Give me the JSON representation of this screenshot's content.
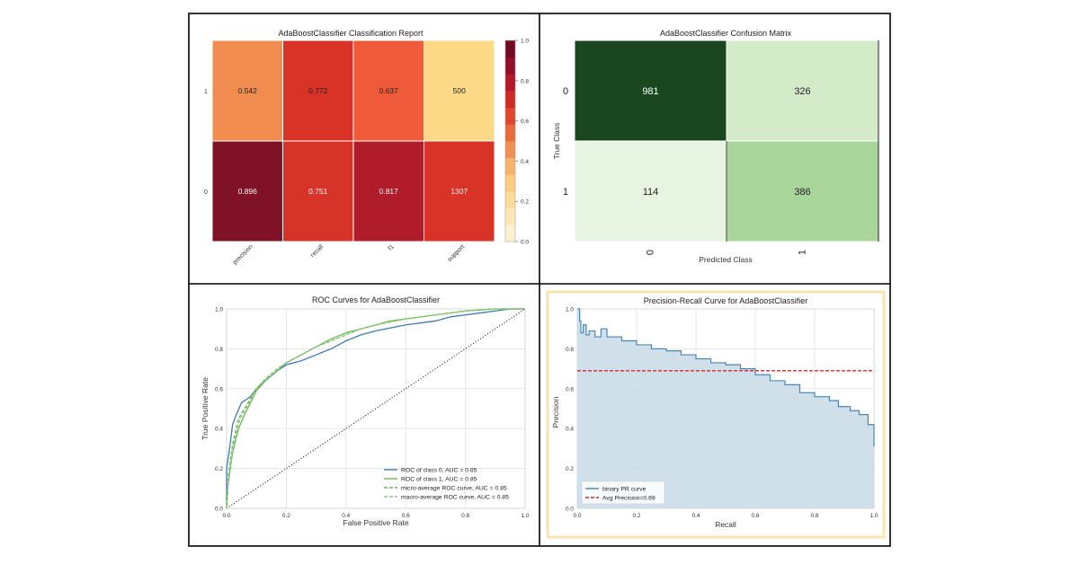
{
  "chart_data": [
    {
      "type": "heatmap",
      "title": "AdaBoostClassifier Classification Report",
      "columns": [
        "precision",
        "recall",
        "f1",
        "support"
      ],
      "rows": [
        "1",
        "0"
      ],
      "values": [
        [
          0.542,
          0.772,
          0.637,
          500
        ],
        [
          0.896,
          0.751,
          0.817,
          1307
        ]
      ],
      "cell_labels": [
        [
          "0.542",
          "0.772",
          "0.637",
          "500"
        ],
        [
          "0.896",
          "0.751",
          "0.817",
          "1307"
        ]
      ],
      "cell_colors": [
        [
          "#f08c50",
          "#d93226",
          "#ee5a3a",
          "#fbd987"
        ],
        [
          "#7f1226",
          "#d63428",
          "#b01c2a",
          "#d93226"
        ]
      ],
      "colorbar": {
        "ticks": [
          "0.0",
          "0.2",
          "0.4",
          "0.6",
          "0.8",
          "1.0"
        ],
        "range": [
          0,
          1
        ],
        "steps": [
          "#fdf2cf",
          "#fde8b5",
          "#fcdc9a",
          "#fbcb80",
          "#f6b26b",
          "#f09055",
          "#ea6a3e",
          "#e2462f",
          "#d02a24",
          "#b5172a",
          "#930f28",
          "#720a24"
        ]
      }
    },
    {
      "type": "heatmap",
      "title": "AdaBoostClassifier Confusion Matrix",
      "xlabel": "Predicted Class",
      "ylabel": "True Class",
      "x_ticks": [
        "0",
        "1"
      ],
      "y_ticks": [
        "0",
        "1"
      ],
      "values": [
        [
          981,
          326
        ],
        [
          114,
          386
        ]
      ],
      "cell_labels": [
        [
          "981",
          "326"
        ],
        [
          "114",
          "386"
        ]
      ],
      "cell_colors": [
        [
          "#1a4620",
          "#d3ebc8"
        ],
        [
          "#e8f4e2",
          "#a8d69a"
        ]
      ],
      "text_colors": [
        [
          "#ffffff",
          "#222222"
        ],
        [
          "#222222",
          "#222222"
        ]
      ]
    },
    {
      "type": "line",
      "title": "ROC Curves for AdaBoostClassifier",
      "xlabel": "False Positive Rate",
      "ylabel": "True Positive Rate",
      "xlim": [
        0,
        1
      ],
      "ylim": [
        0,
        1
      ],
      "ticks": [
        "0.0",
        "0.2",
        "0.4",
        "0.6",
        "0.8",
        "1.0"
      ],
      "grid": true,
      "legend_position": "bottom-right",
      "series": [
        {
          "name": "ROC of class 0, AUC = 0.85",
          "color": "#3e7bb0",
          "dash": "solid",
          "x": [
            0,
            0,
            0.01,
            0.02,
            0.03,
            0.05,
            0.08,
            0.1,
            0.13,
            0.17,
            0.2,
            0.25,
            0.3,
            0.35,
            0.4,
            0.45,
            0.5,
            0.6,
            0.7,
            0.75,
            0.8,
            0.85,
            0.9,
            0.95,
            1.0
          ],
          "y": [
            0,
            0.2,
            0.3,
            0.42,
            0.46,
            0.53,
            0.56,
            0.6,
            0.64,
            0.69,
            0.72,
            0.74,
            0.77,
            0.8,
            0.84,
            0.87,
            0.89,
            0.92,
            0.94,
            0.96,
            0.97,
            0.98,
            0.99,
            1.0,
            1.0
          ]
        },
        {
          "name": "ROC of class 1, AUC = 0.85",
          "color": "#6fb45a",
          "dash": "solid",
          "x": [
            0,
            0.005,
            0.02,
            0.04,
            0.06,
            0.08,
            0.1,
            0.13,
            0.17,
            0.2,
            0.25,
            0.3,
            0.35,
            0.4,
            0.45,
            0.5,
            0.55,
            0.6,
            0.7,
            0.8,
            0.9,
            1.0
          ],
          "y": [
            0,
            0.12,
            0.28,
            0.4,
            0.47,
            0.53,
            0.59,
            0.64,
            0.69,
            0.73,
            0.77,
            0.81,
            0.85,
            0.88,
            0.9,
            0.92,
            0.94,
            0.95,
            0.97,
            0.99,
            1.0,
            1.0
          ]
        },
        {
          "name": "micro-average ROC curve, AUC = 0.85",
          "color": "#6fb45a",
          "dash": "dashed",
          "x": [
            0,
            0.005,
            0.02,
            0.04,
            0.06,
            0.08,
            0.1,
            0.13,
            0.17,
            0.2,
            0.25,
            0.3,
            0.35,
            0.4,
            0.45,
            0.5,
            0.6,
            0.7,
            0.8,
            0.9,
            1.0
          ],
          "y": [
            0,
            0.16,
            0.32,
            0.45,
            0.5,
            0.55,
            0.6,
            0.65,
            0.7,
            0.73,
            0.77,
            0.81,
            0.84,
            0.87,
            0.9,
            0.92,
            0.95,
            0.97,
            0.99,
            1.0,
            1.0
          ]
        },
        {
          "name": "macro-average ROC curve, AUC = 0.85",
          "color": "#8fca7c",
          "dash": "dashed",
          "x": [
            0,
            0.005,
            0.02,
            0.04,
            0.06,
            0.08,
            0.1,
            0.13,
            0.17,
            0.2,
            0.25,
            0.3,
            0.35,
            0.4,
            0.45,
            0.5,
            0.6,
            0.7,
            0.8,
            0.9,
            1.0
          ],
          "y": [
            0,
            0.14,
            0.3,
            0.43,
            0.49,
            0.54,
            0.6,
            0.65,
            0.7,
            0.73,
            0.77,
            0.81,
            0.84,
            0.87,
            0.9,
            0.92,
            0.95,
            0.97,
            0.99,
            1.0,
            1.0
          ]
        }
      ],
      "diagonal": {
        "x": [
          0,
          1
        ],
        "y": [
          0,
          1
        ],
        "color": "#222222",
        "dash": "dotted"
      }
    },
    {
      "type": "area",
      "title": "Precision-Recall Curve for AdaBoostClassifier",
      "xlabel": "Recall",
      "ylabel": "Precision",
      "xlim": [
        0,
        1
      ],
      "ylim": [
        0,
        1
      ],
      "ticks": [
        "0.0",
        "0.2",
        "0.4",
        "0.6",
        "0.8",
        "1.0"
      ],
      "grid": true,
      "legend_position": "bottom-left",
      "series": [
        {
          "name": "binary PR curve",
          "color": "#4a86b4",
          "fill": "#c8dbe8",
          "x": [
            0,
            0.008,
            0.012,
            0.02,
            0.03,
            0.04,
            0.06,
            0.08,
            0.1,
            0.15,
            0.2,
            0.25,
            0.3,
            0.35,
            0.4,
            0.45,
            0.5,
            0.55,
            0.6,
            0.65,
            0.7,
            0.75,
            0.8,
            0.85,
            0.88,
            0.92,
            0.95,
            0.98,
            1.0
          ],
          "y": [
            1.0,
            0.94,
            0.88,
            0.92,
            0.87,
            0.89,
            0.86,
            0.9,
            0.86,
            0.84,
            0.82,
            0.8,
            0.79,
            0.77,
            0.75,
            0.73,
            0.72,
            0.7,
            0.67,
            0.64,
            0.62,
            0.58,
            0.56,
            0.54,
            0.51,
            0.49,
            0.47,
            0.42,
            0.31
          ]
        },
        {
          "name": "Avg Precision=0.69",
          "color": "#d62728",
          "dash": "dashed",
          "x": [
            0,
            1
          ],
          "y": [
            0.69,
            0.69
          ]
        }
      ]
    }
  ]
}
